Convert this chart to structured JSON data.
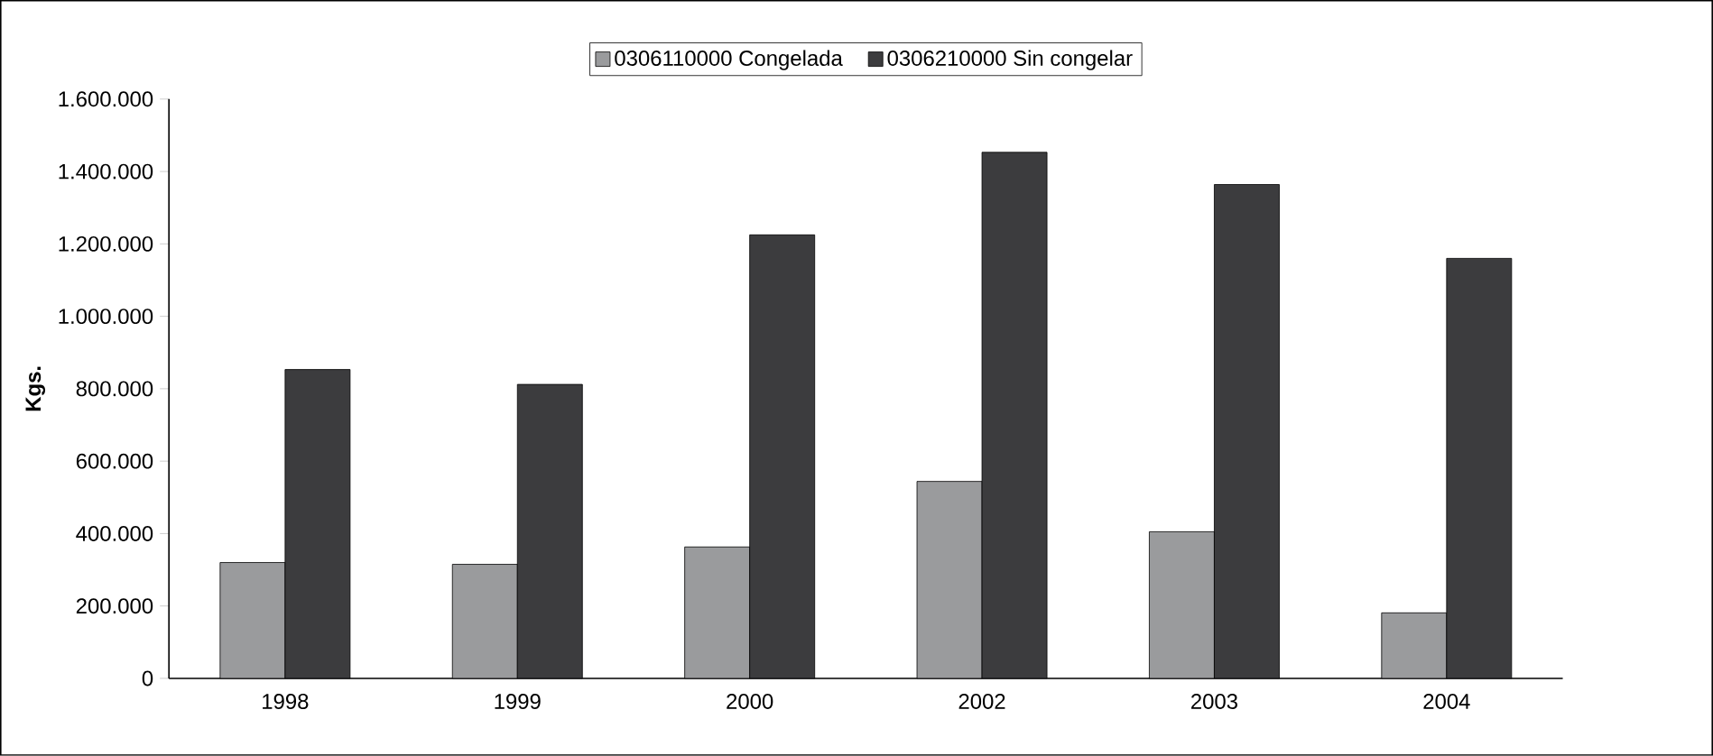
{
  "chart_data": {
    "type": "bar",
    "ylabel": "Kgs.",
    "categories": [
      "1998",
      "1999",
      "2000",
      "2002",
      "2003",
      "2004"
    ],
    "series": [
      {
        "name": "0306110000 Congelada",
        "color": "#9a9b9d",
        "values": [
          320000,
          315000,
          363000,
          544000,
          405000,
          181000
        ]
      },
      {
        "name": "0306210000 Sin congelar",
        "color": "#3c3c3e",
        "values": [
          853000,
          812000,
          1225000,
          1453000,
          1364000,
          1160000
        ]
      }
    ],
    "ylim": [
      0,
      1600000
    ],
    "yticks": [
      {
        "value": 0,
        "label": "0"
      },
      {
        "value": 200000,
        "label": "200.000"
      },
      {
        "value": 400000,
        "label": "400.000"
      },
      {
        "value": 600000,
        "label": "600.000"
      },
      {
        "value": 800000,
        "label": "800.000"
      },
      {
        "value": 1000000,
        "label": "1.000.000"
      },
      {
        "value": 1200000,
        "label": "1.200.000"
      },
      {
        "value": 1400000,
        "label": "1.400.000"
      },
      {
        "value": 1600000,
        "label": "1.600.000"
      }
    ],
    "legend": "top",
    "grid": false
  }
}
